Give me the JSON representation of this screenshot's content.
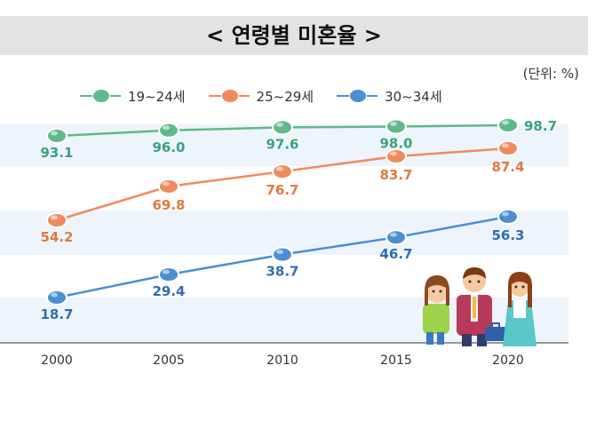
{
  "title": "< 연령별 미혼율 >",
  "unit_label": "(단위: %)",
  "colors": {
    "series_green": "#5fba8a",
    "series_orange": "#f08a5d",
    "series_blue": "#4a8fd4",
    "label_green": "#3aa47c",
    "label_orange": "#e07a3d",
    "label_blue": "#2f6fae",
    "band": "#eef4fb",
    "title_bar": "#e3e3e3"
  },
  "chart_data": {
    "type": "line",
    "title": "< 연령별 미혼율 >",
    "x": [
      "2000",
      "2005",
      "2010",
      "2015",
      "2020"
    ],
    "ylabel": "(단위: %)",
    "ylim": [
      0,
      100
    ],
    "legend_position": "top",
    "grid": false,
    "series": [
      {
        "name": "19~24세",
        "values": [
          93.1,
          96.0,
          97.6,
          98.0,
          98.7
        ]
      },
      {
        "name": "25~29세",
        "values": [
          54.2,
          69.8,
          76.7,
          83.7,
          87.4
        ]
      },
      {
        "name": "30~34세",
        "values": [
          18.7,
          29.4,
          38.7,
          46.7,
          56.3
        ]
      }
    ]
  }
}
